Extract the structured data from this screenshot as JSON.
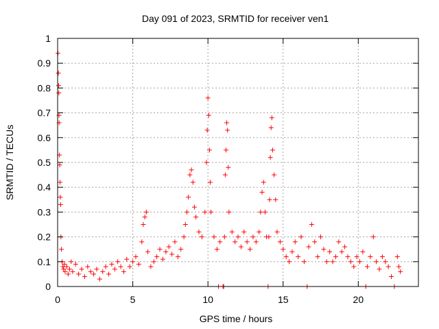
{
  "chart_data": {
    "type": "scatter",
    "title": "Day 091 of 2023, SRMTID for receiver ven1",
    "xlabel": "GPS time / hours",
    "ylabel": "SRMTID / TECUs",
    "xlim": [
      0,
      24
    ],
    "ylim": [
      0,
      1
    ],
    "xticks": [
      0,
      5,
      10,
      15,
      20
    ],
    "xtick_labels": [
      "0",
      "5",
      "10",
      "15",
      "20"
    ],
    "yticks": [
      0,
      0.1,
      0.2,
      0.3,
      0.4,
      0.5,
      0.6,
      0.7,
      0.8,
      0.9,
      1
    ],
    "ytick_labels": [
      "0",
      "0.1",
      "0.2",
      "0.3",
      "0.4",
      "0.5",
      "0.6",
      "0.7",
      "0.8",
      "0.9",
      "1"
    ],
    "grid": true,
    "marker": "+",
    "series_color": "#ff0000",
    "series": [
      {
        "name": "SRMTID",
        "points": [
          [
            0.02,
            0.94
          ],
          [
            0.05,
            0.86
          ],
          [
            0.07,
            0.81
          ],
          [
            0.08,
            0.78
          ],
          [
            0.09,
            0.69
          ],
          [
            0.1,
            0.66
          ],
          [
            0.12,
            0.53
          ],
          [
            0.14,
            0.49
          ],
          [
            0.16,
            0.42
          ],
          [
            0.18,
            0.36
          ],
          [
            0.2,
            0.33
          ],
          [
            0.22,
            0.2
          ],
          [
            0.25,
            0.15
          ],
          [
            0.3,
            0.1
          ],
          [
            0.35,
            0.08
          ],
          [
            0.4,
            0.07
          ],
          [
            0.45,
            0.09
          ],
          [
            0.5,
            0.06
          ],
          [
            0.6,
            0.08
          ],
          [
            0.7,
            0.05
          ],
          [
            0.8,
            0.07
          ],
          [
            0.9,
            0.1
          ],
          [
            1.0,
            0.06
          ],
          [
            1.2,
            0.09
          ],
          [
            1.4,
            0.05
          ],
          [
            1.6,
            0.07
          ],
          [
            1.8,
            0.04
          ],
          [
            2.0,
            0.08
          ],
          [
            2.2,
            0.06
          ],
          [
            2.4,
            0.05
          ],
          [
            2.6,
            0.07
          ],
          [
            2.8,
            0.03
          ],
          [
            3.0,
            0.06
          ],
          [
            3.2,
            0.08
          ],
          [
            3.4,
            0.05
          ],
          [
            3.6,
            0.09
          ],
          [
            3.8,
            0.07
          ],
          [
            4.0,
            0.1
          ],
          [
            4.2,
            0.08
          ],
          [
            4.4,
            0.06
          ],
          [
            4.6,
            0.11
          ],
          [
            4.8,
            0.08
          ],
          [
            5.0,
            0.1
          ],
          [
            5.2,
            0.12
          ],
          [
            5.4,
            0.09
          ],
          [
            5.6,
            0.18
          ],
          [
            5.7,
            0.25
          ],
          [
            5.8,
            0.28
          ],
          [
            5.9,
            0.3
          ],
          [
            6.0,
            0.14
          ],
          [
            6.2,
            0.08
          ],
          [
            6.4,
            0.1
          ],
          [
            6.6,
            0.12
          ],
          [
            6.8,
            0.15
          ],
          [
            7.0,
            0.11
          ],
          [
            7.2,
            0.14
          ],
          [
            7.4,
            0.16
          ],
          [
            7.6,
            0.13
          ],
          [
            7.8,
            0.18
          ],
          [
            8.0,
            0.12
          ],
          [
            8.2,
            0.15
          ],
          [
            8.4,
            0.2
          ],
          [
            8.5,
            0.25
          ],
          [
            8.6,
            0.3
          ],
          [
            8.7,
            0.36
          ],
          [
            8.8,
            0.45
          ],
          [
            8.9,
            0.47
          ],
          [
            9.0,
            0.42
          ],
          [
            9.1,
            0.32
          ],
          [
            9.2,
            0.28
          ],
          [
            9.4,
            0.22
          ],
          [
            9.6,
            0.2
          ],
          [
            9.8,
            0.3
          ],
          [
            9.9,
            0.5
          ],
          [
            9.95,
            0.63
          ],
          [
            10.0,
            0.76
          ],
          [
            10.05,
            0.69
          ],
          [
            10.1,
            0.55
          ],
          [
            10.15,
            0.42
          ],
          [
            10.2,
            0.3
          ],
          [
            10.4,
            0.2
          ],
          [
            10.6,
            0.15
          ],
          [
            10.7,
            0.0
          ],
          [
            10.8,
            0.18
          ],
          [
            11.0,
            0.0
          ],
          [
            11.05,
            0.0
          ],
          [
            11.1,
            0.2
          ],
          [
            11.15,
            0.45
          ],
          [
            11.2,
            0.55
          ],
          [
            11.25,
            0.66
          ],
          [
            11.3,
            0.63
          ],
          [
            11.35,
            0.48
          ],
          [
            11.4,
            0.3
          ],
          [
            11.6,
            0.22
          ],
          [
            11.8,
            0.18
          ],
          [
            12.0,
            0.2
          ],
          [
            12.2,
            0.16
          ],
          [
            12.4,
            0.22
          ],
          [
            12.6,
            0.18
          ],
          [
            12.8,
            0.15
          ],
          [
            13.0,
            0.2
          ],
          [
            13.2,
            0.18
          ],
          [
            13.4,
            0.22
          ],
          [
            13.5,
            0.3
          ],
          [
            13.6,
            0.38
          ],
          [
            13.7,
            0.42
          ],
          [
            13.8,
            0.3
          ],
          [
            13.9,
            0.2
          ],
          [
            14.0,
            0.0
          ],
          [
            14.05,
            0.2
          ],
          [
            14.1,
            0.35
          ],
          [
            14.15,
            0.52
          ],
          [
            14.2,
            0.64
          ],
          [
            14.25,
            0.68
          ],
          [
            14.3,
            0.55
          ],
          [
            14.4,
            0.45
          ],
          [
            14.5,
            0.35
          ],
          [
            14.6,
            0.22
          ],
          [
            14.8,
            0.18
          ],
          [
            15.0,
            0.15
          ],
          [
            15.2,
            0.12
          ],
          [
            15.4,
            0.1
          ],
          [
            15.6,
            0.14
          ],
          [
            15.8,
            0.18
          ],
          [
            16.0,
            0.12
          ],
          [
            16.2,
            0.2
          ],
          [
            16.4,
            0.1
          ],
          [
            16.6,
            0.0
          ],
          [
            16.7,
            0.16
          ],
          [
            16.9,
            0.25
          ],
          [
            17.1,
            0.18
          ],
          [
            17.3,
            0.12
          ],
          [
            17.5,
            0.2
          ],
          [
            17.7,
            0.15
          ],
          [
            17.9,
            0.1
          ],
          [
            18.1,
            0.14
          ],
          [
            18.3,
            0.1
          ],
          [
            18.5,
            0.12
          ],
          [
            18.7,
            0.18
          ],
          [
            18.9,
            0.14
          ],
          [
            19.1,
            0.16
          ],
          [
            19.3,
            0.12
          ],
          [
            19.5,
            0.1
          ],
          [
            19.7,
            0.08
          ],
          [
            19.9,
            0.12
          ],
          [
            20.1,
            0.1
          ],
          [
            20.3,
            0.14
          ],
          [
            20.5,
            0.0
          ],
          [
            20.6,
            0.08
          ],
          [
            20.8,
            0.12
          ],
          [
            21.0,
            0.2
          ],
          [
            21.2,
            0.1
          ],
          [
            21.4,
            0.07
          ],
          [
            21.6,
            0.12
          ],
          [
            21.8,
            0.1
          ],
          [
            22.0,
            0.08
          ],
          [
            22.2,
            0.04
          ],
          [
            22.4,
            0.0
          ],
          [
            22.6,
            0.12
          ],
          [
            22.7,
            0.08
          ],
          [
            22.8,
            0.06
          ]
        ]
      }
    ]
  }
}
